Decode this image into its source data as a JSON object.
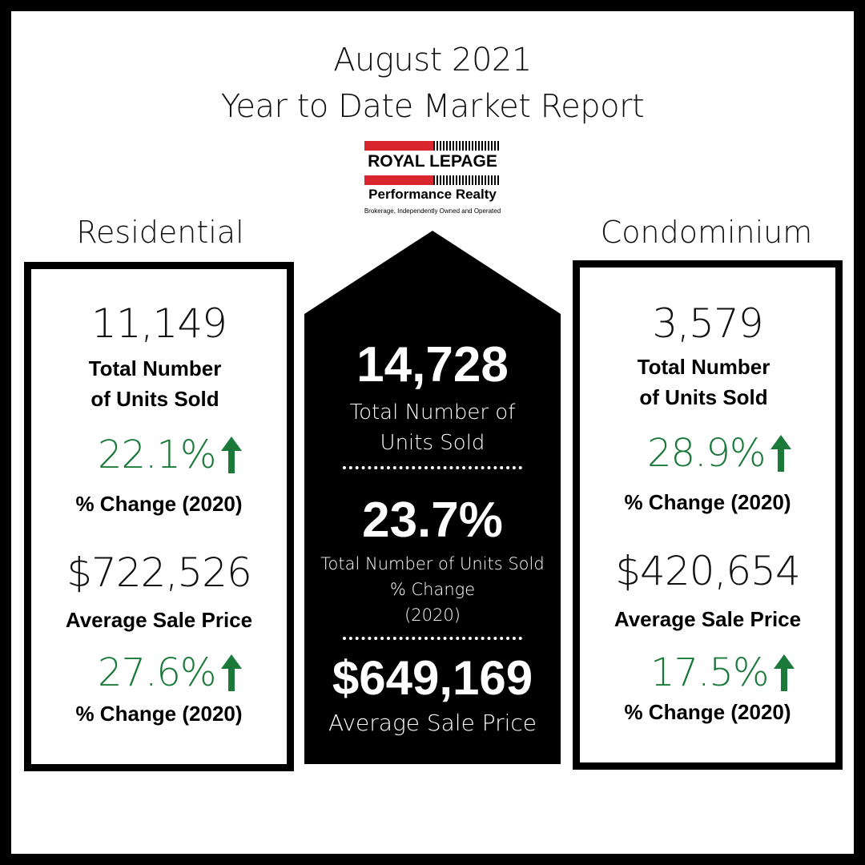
{
  "header": {
    "line1": "August 2021",
    "line2": "Year to Date Market Report"
  },
  "logo": {
    "brand": "ROYAL LEPAGE",
    "office": "Performance Realty",
    "tagline": "Brokerage, Independently Owned and Operated",
    "colors": {
      "red": "#d9252e",
      "black": "#000000"
    }
  },
  "residential": {
    "section_title": "Residential",
    "units_sold": "11,149",
    "units_label_1": "Total Number",
    "units_label_2": "of Units Sold",
    "units_change": "22.1%",
    "change_label": "% Change (2020)",
    "avg_price": "$722,526",
    "avg_price_label": "Average Sale Price",
    "price_change": "27.6%",
    "price_change_label": "% Change (2020)"
  },
  "total": {
    "units_sold": "14,728",
    "units_label_1": "Total Number of",
    "units_label_2": "Units Sold",
    "units_change": "23.7%",
    "change_label_1": "Total Number of Units Sold",
    "change_label_2": "% Change",
    "change_label_3": "(2020)",
    "avg_price": "$649,169",
    "avg_price_label": "Average Sale Price"
  },
  "condominium": {
    "section_title": "Condominium",
    "units_sold": "3,579",
    "units_label_1": "Total Number",
    "units_label_2": "of Units Sold",
    "units_change": "28.9%",
    "change_label": "% Change (2020)",
    "avg_price": "$420,654",
    "avg_price_label": "Average Sale Price",
    "price_change": "17.5%",
    "price_change_label": "% Change (2020)"
  },
  "icons": {
    "increase": "arrow-up-icon"
  },
  "colors": {
    "positive": "#1b7a3a",
    "frame": "#000000",
    "background": "#ffffff"
  }
}
